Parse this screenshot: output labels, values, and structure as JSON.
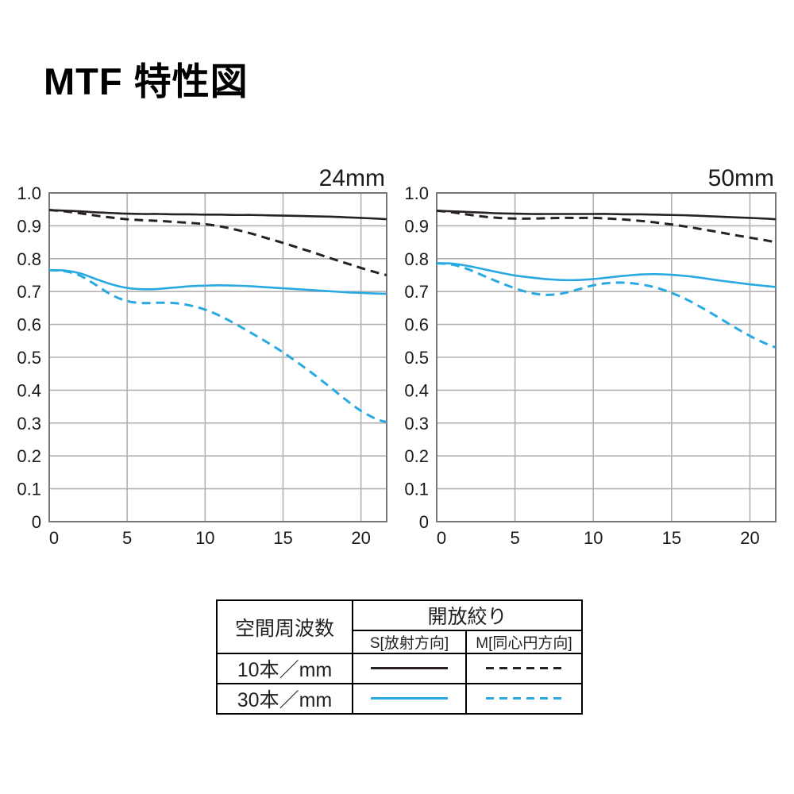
{
  "page_title": "MTF 特性図",
  "colors": {
    "line_black": "#272122",
    "line_blue": "#29a9e1",
    "grid": "#b3b1b2",
    "frame": "#77787b",
    "text": "#1a1a1a",
    "table_border": "#000000"
  },
  "chart_data": [
    {
      "type": "line",
      "title": "24mm",
      "xlabel": "",
      "ylabel": "",
      "xlim": [
        0,
        21.65
      ],
      "ylim": [
        0,
        1.0
      ],
      "x_ticks": [
        0,
        5,
        10,
        15,
        20
      ],
      "y_ticks": [
        0,
        0.1,
        0.2,
        0.3,
        0.4,
        0.5,
        0.6,
        0.7,
        0.8,
        0.9,
        1.0
      ],
      "y_tick_labels": [
        "0",
        "0.1",
        "0.2",
        "0.3",
        "0.4",
        "0.5",
        "0.6",
        "0.7",
        "0.8",
        "0.9",
        "1.0"
      ],
      "grid": true,
      "legend_position": "none",
      "x": [
        0,
        1,
        2,
        3,
        4,
        5,
        6,
        7,
        8,
        9,
        10,
        11,
        12,
        13,
        14,
        15,
        16,
        17,
        18,
        19,
        20,
        21,
        21.65
      ],
      "series": [
        {
          "name": "10本/mm S[放射方向]",
          "color": "black",
          "style": "solid",
          "values": [
            0.948,
            0.946,
            0.944,
            0.941,
            0.939,
            0.937,
            0.936,
            0.936,
            0.935,
            0.935,
            0.934,
            0.934,
            0.933,
            0.933,
            0.932,
            0.931,
            0.93,
            0.929,
            0.928,
            0.926,
            0.924,
            0.922,
            0.92
          ]
        },
        {
          "name": "10本/mm M[同心円方向]",
          "color": "black",
          "style": "dashed",
          "values": [
            0.948,
            0.944,
            0.938,
            0.931,
            0.925,
            0.92,
            0.917,
            0.915,
            0.912,
            0.909,
            0.905,
            0.898,
            0.888,
            0.876,
            0.862,
            0.848,
            0.833,
            0.818,
            0.802,
            0.787,
            0.772,
            0.758,
            0.75
          ]
        },
        {
          "name": "30本/mm S[放射方向]",
          "color": "blue",
          "style": "solid",
          "values": [
            0.765,
            0.764,
            0.755,
            0.738,
            0.722,
            0.711,
            0.707,
            0.708,
            0.712,
            0.716,
            0.718,
            0.719,
            0.718,
            0.716,
            0.713,
            0.71,
            0.707,
            0.704,
            0.701,
            0.698,
            0.696,
            0.694,
            0.693
          ]
        },
        {
          "name": "30本/mm M[同心円方向]",
          "color": "blue",
          "style": "dashed",
          "values": [
            0.765,
            0.762,
            0.748,
            0.72,
            0.69,
            0.671,
            0.665,
            0.666,
            0.665,
            0.658,
            0.645,
            0.625,
            0.6,
            0.573,
            0.545,
            0.515,
            0.482,
            0.447,
            0.41,
            0.372,
            0.337,
            0.312,
            0.303
          ]
        }
      ]
    },
    {
      "type": "line",
      "title": "50mm",
      "xlabel": "",
      "ylabel": "",
      "xlim": [
        0,
        21.65
      ],
      "ylim": [
        0,
        1.0
      ],
      "x_ticks": [
        0,
        5,
        10,
        15,
        20
      ],
      "y_ticks": [
        0,
        0.1,
        0.2,
        0.3,
        0.4,
        0.5,
        0.6,
        0.7,
        0.8,
        0.9,
        1.0
      ],
      "y_tick_labels": [
        "0",
        "0.1",
        "0.2",
        "0.3",
        "0.4",
        "0.5",
        "0.6",
        "0.7",
        "0.8",
        "0.9",
        "1.0"
      ],
      "grid": true,
      "legend_position": "none",
      "x": [
        0,
        1,
        2,
        3,
        4,
        5,
        6,
        7,
        8,
        9,
        10,
        11,
        12,
        13,
        14,
        15,
        16,
        17,
        18,
        19,
        20,
        21,
        21.65
      ],
      "series": [
        {
          "name": "10本/mm S[放射方向]",
          "color": "black",
          "style": "solid",
          "values": [
            0.946,
            0.944,
            0.942,
            0.94,
            0.938,
            0.937,
            0.936,
            0.936,
            0.936,
            0.936,
            0.936,
            0.936,
            0.935,
            0.935,
            0.934,
            0.933,
            0.932,
            0.93,
            0.928,
            0.926,
            0.924,
            0.922,
            0.92
          ]
        },
        {
          "name": "10本/mm M[同心円方向]",
          "color": "black",
          "style": "dashed",
          "values": [
            0.946,
            0.941,
            0.934,
            0.928,
            0.924,
            0.922,
            0.922,
            0.923,
            0.924,
            0.924,
            0.924,
            0.922,
            0.919,
            0.915,
            0.91,
            0.904,
            0.897,
            0.889,
            0.881,
            0.872,
            0.864,
            0.856,
            0.85
          ]
        },
        {
          "name": "30本/mm S[放射方向]",
          "color": "blue",
          "style": "solid",
          "values": [
            0.786,
            0.785,
            0.778,
            0.768,
            0.758,
            0.749,
            0.743,
            0.738,
            0.735,
            0.735,
            0.738,
            0.743,
            0.748,
            0.752,
            0.753,
            0.751,
            0.747,
            0.741,
            0.734,
            0.728,
            0.722,
            0.717,
            0.714
          ]
        },
        {
          "name": "30本/mm M[同心円方向]",
          "color": "blue",
          "style": "dashed",
          "values": [
            0.786,
            0.782,
            0.768,
            0.748,
            0.728,
            0.71,
            0.696,
            0.69,
            0.694,
            0.706,
            0.719,
            0.726,
            0.727,
            0.722,
            0.712,
            0.696,
            0.675,
            0.649,
            0.621,
            0.592,
            0.565,
            0.542,
            0.53
          ]
        }
      ]
    }
  ],
  "legend_table": {
    "col1_header": "空間周波数",
    "group_header": "開放絞り",
    "s_header": "S[放射方向]",
    "m_header": "M[同心円方向]",
    "rows": [
      {
        "label": "10本／mm",
        "color": "black"
      },
      {
        "label": "30本／mm",
        "color": "blue"
      }
    ]
  }
}
